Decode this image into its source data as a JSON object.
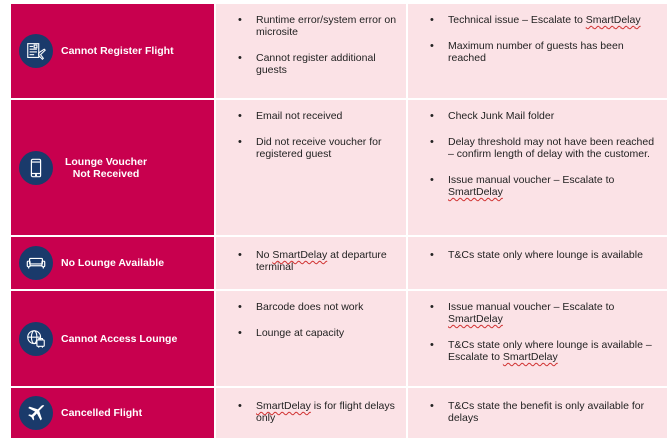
{
  "colors": {
    "label_bg": "#c8004e",
    "content_bg": "#fbe2e6",
    "icon_bg": "#1a3a6b"
  },
  "rows": [
    {
      "title": "Cannot Register Flight",
      "icon": "flight-register-icon",
      "issues": [
        "Runtime error/system error on microsite",
        "Cannot register additional guests"
      ],
      "resolutions": [
        "Technical issue – Escalate to SmartDelay",
        "Maximum number of guests has been reached"
      ]
    },
    {
      "title": "Lounge Voucher Not Received",
      "icon": "mobile-phone-icon",
      "issues": [
        "Email not received",
        "Did not receive voucher for registered guest"
      ],
      "resolutions": [
        "Check Junk Mail folder",
        "Delay threshold may not have been reached – confirm length of delay with the customer.",
        "Issue manual voucher – Escalate to SmartDelay"
      ]
    },
    {
      "title": "No Lounge Available",
      "icon": "sofa-icon",
      "issues": [
        "No SmartDelay at departure terminal"
      ],
      "resolutions": [
        "T&Cs state only where lounge is available"
      ]
    },
    {
      "title": "Cannot Access Lounge",
      "icon": "globe-luggage-icon",
      "issues": [
        "Barcode does not work",
        "Lounge at capacity"
      ],
      "resolutions": [
        "Issue manual voucher – Escalate to SmartDelay",
        "T&Cs state only where lounge is available – Escalate to SmartDelay"
      ]
    },
    {
      "title": "Cancelled Flight",
      "icon": "airplane-icon",
      "issues": [
        "SmartDelay is for flight delays only"
      ],
      "resolutions": [
        "T&Cs state the benefit is only available for delays"
      ]
    }
  ]
}
